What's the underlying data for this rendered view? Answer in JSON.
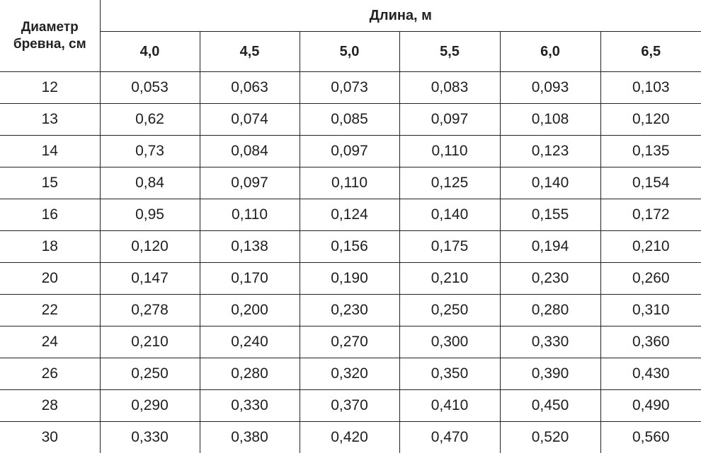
{
  "table": {
    "corner_header": "Диаметр бревна, см",
    "group_header": "Длина, м",
    "lengths": [
      "4,0",
      "4,5",
      "5,0",
      "5,5",
      "6,0",
      "6,5"
    ],
    "rows": [
      {
        "diameter": "12",
        "values": [
          "0,053",
          "0,063",
          "0,073",
          "0,083",
          "0,093",
          "0,103"
        ]
      },
      {
        "diameter": "13",
        "values": [
          "0,62",
          "0,074",
          "0,085",
          "0,097",
          "0,108",
          "0,120"
        ]
      },
      {
        "diameter": "14",
        "values": [
          "0,73",
          "0,084",
          "0,097",
          "0,110",
          "0,123",
          "0,135"
        ]
      },
      {
        "diameter": "15",
        "values": [
          "0,84",
          "0,097",
          "0,110",
          "0,125",
          "0,140",
          "0,154"
        ]
      },
      {
        "diameter": "16",
        "values": [
          "0,95",
          "0,110",
          "0,124",
          "0,140",
          "0,155",
          "0,172"
        ]
      },
      {
        "diameter": "18",
        "values": [
          "0,120",
          "0,138",
          "0,156",
          "0,175",
          "0,194",
          "0,210"
        ]
      },
      {
        "diameter": "20",
        "values": [
          "0,147",
          "0,170",
          "0,190",
          "0,210",
          "0,230",
          "0,260"
        ]
      },
      {
        "diameter": "22",
        "values": [
          "0,278",
          "0,200",
          "0,230",
          "0,250",
          "0,280",
          "0,310"
        ]
      },
      {
        "diameter": "24",
        "values": [
          "0,210",
          "0,240",
          "0,270",
          "0,300",
          "0,330",
          "0,360"
        ]
      },
      {
        "diameter": "26",
        "values": [
          "0,250",
          "0,280",
          "0,320",
          "0,350",
          "0,390",
          "0,430"
        ]
      },
      {
        "diameter": "28",
        "values": [
          "0,290",
          "0,330",
          "0,370",
          "0,410",
          "0,450",
          "0,490"
        ]
      },
      {
        "diameter": "30",
        "values": [
          "0,330",
          "0,380",
          "0,420",
          "0,470",
          "0,520",
          "0,560"
        ]
      }
    ]
  }
}
